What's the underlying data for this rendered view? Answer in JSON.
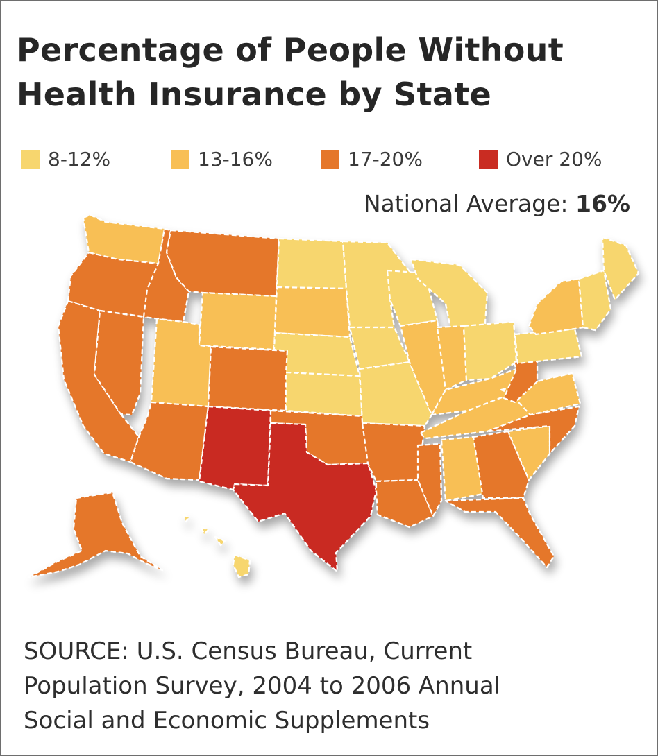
{
  "title": {
    "line1": "Percentage of People Without",
    "line2": "Health Insurance by State"
  },
  "legend": [
    {
      "label": "8-12%",
      "color": "#f7d66e"
    },
    {
      "label": "13-16%",
      "color": "#f8bf55"
    },
    {
      "label": "17-20%",
      "color": "#e5772a"
    },
    {
      "label": "Over 20%",
      "color": "#c92c22"
    }
  ],
  "national_average": {
    "label": "National Average:",
    "value": "16%"
  },
  "map": {
    "border_color": "#ffffff",
    "states": [
      {
        "id": "WA",
        "category": "13-16%"
      },
      {
        "id": "OR",
        "category": "17-20%"
      },
      {
        "id": "CA",
        "category": "17-20%"
      },
      {
        "id": "NV",
        "category": "17-20%"
      },
      {
        "id": "ID",
        "category": "17-20%"
      },
      {
        "id": "MT",
        "category": "17-20%"
      },
      {
        "id": "WY",
        "category": "13-16%"
      },
      {
        "id": "UT",
        "category": "13-16%"
      },
      {
        "id": "AZ",
        "category": "17-20%"
      },
      {
        "id": "CO",
        "category": "17-20%"
      },
      {
        "id": "NM",
        "category": "Over 20%"
      },
      {
        "id": "ND",
        "category": "8-12%"
      },
      {
        "id": "SD",
        "category": "13-16%"
      },
      {
        "id": "NE",
        "category": "8-12%"
      },
      {
        "id": "KS",
        "category": "8-12%"
      },
      {
        "id": "OK",
        "category": "17-20%"
      },
      {
        "id": "TX",
        "category": "Over 20%"
      },
      {
        "id": "MN",
        "category": "8-12%"
      },
      {
        "id": "IA",
        "category": "8-12%"
      },
      {
        "id": "MO",
        "category": "8-12%"
      },
      {
        "id": "AR",
        "category": "17-20%"
      },
      {
        "id": "LA",
        "category": "17-20%"
      },
      {
        "id": "WI",
        "category": "8-12%"
      },
      {
        "id": "IL",
        "category": "13-16%"
      },
      {
        "id": "MI",
        "category": "8-12%"
      },
      {
        "id": "IN",
        "category": "13-16%"
      },
      {
        "id": "OH",
        "category": "8-12%"
      },
      {
        "id": "KY",
        "category": "13-16%"
      },
      {
        "id": "TN",
        "category": "13-16%"
      },
      {
        "id": "MS",
        "category": "17-20%"
      },
      {
        "id": "AL",
        "category": "13-16%"
      },
      {
        "id": "GA",
        "category": "17-20%"
      },
      {
        "id": "FL",
        "category": "17-20%"
      },
      {
        "id": "SC",
        "category": "13-16%"
      },
      {
        "id": "NC",
        "category": "17-20%"
      },
      {
        "id": "VA",
        "category": "13-16%"
      },
      {
        "id": "WV",
        "category": "17-20%"
      },
      {
        "id": "PA",
        "category": "8-12%"
      },
      {
        "id": "NY",
        "category": "13-16%"
      },
      {
        "id": "NE-states",
        "category": "8-12%"
      },
      {
        "id": "ME",
        "category": "8-12%"
      },
      {
        "id": "AK",
        "category": "17-20%"
      },
      {
        "id": "HI",
        "category": "8-12%"
      }
    ]
  },
  "source": {
    "line1": "SOURCE: U.S. Census Bureau, Current",
    "line2": "Population Survey, 2004 to 2006 Annual",
    "line3": "Social and Economic Supplements"
  }
}
